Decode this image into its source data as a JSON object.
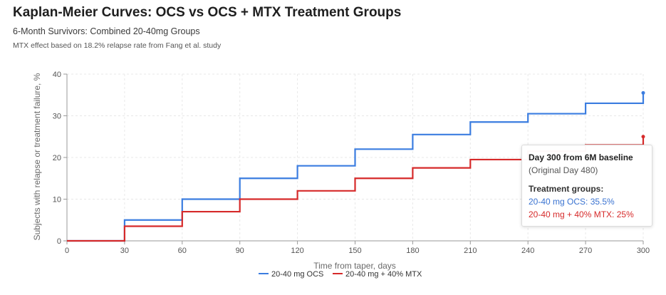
{
  "header": {
    "title": "Kaplan-Meier Curves: OCS vs OCS + MTX Treatment Groups",
    "subtitle": "6-Month Survivors: Combined 20-40mg Groups",
    "note": "MTX effect based on 18.2% relapse rate from Fang et al. study"
  },
  "colors": {
    "ocs": "#3b7de0",
    "mtx": "#d62a2a",
    "grid": "#e8e8e8",
    "axis": "#999999"
  },
  "chart_data": {
    "type": "line",
    "step": true,
    "xlabel": "Time from taper, days",
    "ylabel": "Subjects with relapse or treatment failure, %",
    "xlim": [
      0,
      300
    ],
    "ylim": [
      0,
      40
    ],
    "x_ticks": [
      0,
      30,
      60,
      90,
      120,
      150,
      180,
      210,
      240,
      270,
      300
    ],
    "y_ticks": [
      0,
      10,
      20,
      30,
      40
    ],
    "grid": true,
    "legend_position": "bottom",
    "series": [
      {
        "name": "20-40 mg OCS",
        "color": "#3b7de0",
        "x": [
          0,
          30,
          60,
          90,
          120,
          150,
          180,
          210,
          240,
          270,
          300
        ],
        "y": [
          0,
          5,
          10,
          15,
          18,
          22,
          25.5,
          28.5,
          30.5,
          33,
          35.5
        ]
      },
      {
        "name": "20-40 mg + 40% MTX",
        "color": "#d62a2a",
        "x": [
          0,
          30,
          60,
          90,
          120,
          150,
          180,
          210,
          240,
          270,
          300
        ],
        "y": [
          0,
          3.5,
          7,
          10,
          12,
          15,
          17.5,
          19.5,
          21.5,
          23,
          25
        ]
      }
    ]
  },
  "tooltip": {
    "title": "Day 300 from 6M baseline",
    "subtitle": "(Original Day 480)",
    "heading": "Treatment groups:",
    "ocs_line": "20-40 mg OCS: 35.5%",
    "mtx_line": "20-40 mg + 40% MTX: 25%"
  }
}
